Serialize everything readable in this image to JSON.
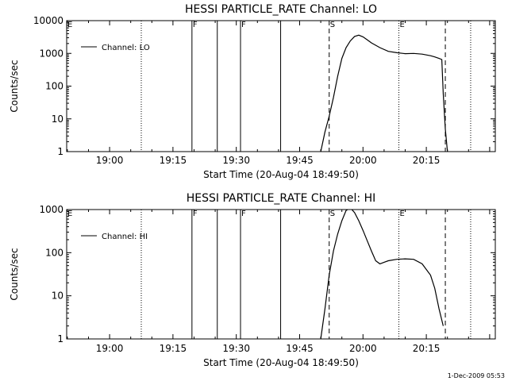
{
  "footer": {
    "timestamp": "1-Dec-2009 05:53"
  },
  "chart_data": [
    {
      "type": "line",
      "title": "HESSI PARTICLE_RATE Channel: LO",
      "xlabel": "Start Time (20-Aug-04 18:49:50)",
      "ylabel": "Counts/sec",
      "y_scale": "log",
      "ylim": [
        1,
        10000
      ],
      "y_ticks": [
        "1",
        "10",
        "100",
        "1000",
        "10000"
      ],
      "x_ticks": [
        "19:00",
        "19:15",
        "19:30",
        "19:45",
        "20:00",
        "20:15"
      ],
      "xlim": [
        "18:49:50",
        "20:31:20"
      ],
      "legend": {
        "entries": [
          "Channel: LO"
        ],
        "placement": "top-left"
      },
      "markers": [
        "E",
        "F",
        "F",
        "S",
        "E"
      ],
      "series": [
        {
          "name": "Channel: LO",
          "x": [
            "19:50:00",
            "19:51:00",
            "19:52:00",
            "19:53:00",
            "19:54:00",
            "19:55:00",
            "19:56:00",
            "19:57:00",
            "19:58:00",
            "19:59:00",
            "20:00:00",
            "20:01:00",
            "20:02:00",
            "20:04:00",
            "20:06:00",
            "20:08:00",
            "20:10:00",
            "20:12:00",
            "20:14:00",
            "20:16:00",
            "20:17:00",
            "20:18:00",
            "20:18:40",
            "20:19:00",
            "20:19:30",
            "20:20:00"
          ],
          "values": [
            1,
            4,
            12,
            45,
            200,
            700,
            1500,
            2400,
            3300,
            3600,
            3200,
            2600,
            2100,
            1500,
            1150,
            1050,
            980,
            1000,
            950,
            850,
            780,
            700,
            650,
            60,
            5,
            1
          ]
        }
      ]
    },
    {
      "type": "line",
      "title": "HESSI PARTICLE_RATE Channel: HI",
      "xlabel": "Start Time (20-Aug-04 18:49:50)",
      "ylabel": "Counts/sec",
      "y_scale": "log",
      "ylim": [
        1,
        1000
      ],
      "y_ticks": [
        "1",
        "10",
        "100",
        "1000"
      ],
      "x_ticks": [
        "19:00",
        "19:15",
        "19:30",
        "19:45",
        "20:00",
        "20:15"
      ],
      "xlim": [
        "18:49:50",
        "20:31:20"
      ],
      "legend": {
        "entries": [
          "Channel: HI"
        ],
        "placement": "top-left"
      },
      "markers": [
        "E",
        "F",
        "F",
        "S",
        "E"
      ],
      "series": [
        {
          "name": "Channel: HI",
          "x": [
            "19:50:00",
            "19:51:00",
            "19:52:00",
            "19:53:00",
            "19:54:00",
            "19:55:00",
            "19:56:00",
            "19:57:00",
            "19:58:00",
            "19:59:00",
            "20:00:00",
            "20:01:00",
            "20:02:00",
            "20:03:00",
            "20:04:00",
            "20:05:00",
            "20:06:00",
            "20:08:00",
            "20:10:00",
            "20:12:00",
            "20:14:00",
            "20:16:00",
            "20:17:00",
            "20:18:00",
            "20:19:00"
          ],
          "values": [
            1,
            5,
            30,
            110,
            270,
            550,
            950,
            1100,
            850,
            550,
            330,
            190,
            110,
            65,
            55,
            60,
            65,
            70,
            72,
            70,
            55,
            30,
            15,
            5,
            2
          ]
        }
      ]
    }
  ]
}
